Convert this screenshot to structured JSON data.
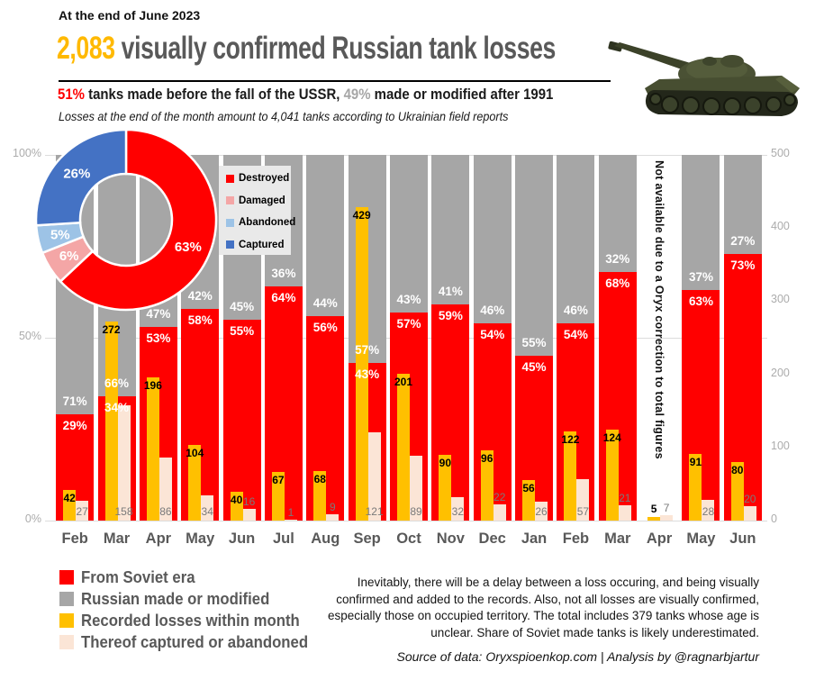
{
  "theme": {
    "accent_red": "#FF0000",
    "gray_bar": "#A6A6A6",
    "gold": "#FFC000",
    "pale_peach": "#FBE5D6",
    "damaged_pink": "#F4A6A6",
    "abandoned_blue": "#9DC3E6",
    "captured_blue": "#4472C4",
    "title_gray": "#595959",
    "title_number_gold": "#FFB900",
    "axis_gray": "#ACACAC"
  },
  "header": {
    "date_note": "At the end of June 2023",
    "title_number": "2,083",
    "title_rest": " visually confirmed Russian tank losses",
    "subtitle_pct_soviet": "51%",
    "subtitle_text_soviet": " tanks made before the fall of the USSR, ",
    "subtitle_pct_modern": "49%",
    "subtitle_text_modern": " made or modified after 1991",
    "note": "Losses at the end of the month amount to 4,041 tanks according to Ukrainian field reports"
  },
  "chart_data": [
    {
      "type": "pie",
      "subtype": "donut",
      "legend_position": "overlay-right",
      "slices": [
        {
          "label": "Destroyed",
          "value": 63,
          "display": "63%",
          "color": "#FF0000"
        },
        {
          "label": "Damaged",
          "value": 6,
          "display": "6%",
          "color": "#F4A6A6"
        },
        {
          "label": "Abandoned",
          "value": 5,
          "display": "5%",
          "color": "#9DC3E6"
        },
        {
          "label": "Captured",
          "value": 26,
          "display": "26%",
          "color": "#4472C4"
        }
      ]
    },
    {
      "type": "bar",
      "subtype": "100pct-stacked-with-count-overlay",
      "categories": [
        "Feb",
        "Mar",
        "Apr",
        "May",
        "Jun",
        "Jul",
        "Aug",
        "Sep",
        "Oct",
        "Nov",
        "Dec",
        "Jan",
        "Feb",
        "Mar",
        "Apr",
        "May",
        "Jun"
      ],
      "left_axis": {
        "ticks": [
          "0%",
          "50%",
          "100%"
        ],
        "range": [
          0,
          100
        ]
      },
      "right_axis": {
        "ticks": [
          "0",
          "100",
          "200",
          "300",
          "400",
          "500"
        ],
        "range": [
          0,
          500
        ]
      },
      "series": [
        {
          "name": "From Soviet era",
          "color": "#FF0000",
          "axis": "left",
          "unit": "%",
          "values": [
            29,
            34,
            53,
            58,
            55,
            64,
            56,
            43,
            57,
            59,
            54,
            45,
            54,
            68,
            null,
            63,
            73
          ]
        },
        {
          "name": "Russian made or modified",
          "color": "#A6A6A6",
          "axis": "left",
          "unit": "%",
          "values": [
            71,
            66,
            47,
            42,
            45,
            36,
            44,
            57,
            43,
            41,
            46,
            55,
            46,
            32,
            null,
            37,
            27
          ]
        },
        {
          "name": "Recorded losses within month",
          "color": "#FFC000",
          "axis": "right",
          "values": [
            42,
            272,
            196,
            104,
            40,
            67,
            68,
            429,
            201,
            90,
            96,
            56,
            122,
            124,
            5,
            91,
            80
          ]
        },
        {
          "name": "Thereof captured or abandoned",
          "color": "#FBE5D6",
          "axis": "right",
          "values": [
            27,
            158,
            86,
            34,
            16,
            1,
            9,
            121,
            89,
            32,
            22,
            26,
            57,
            21,
            7,
            28,
            20
          ]
        }
      ],
      "na_index": 14,
      "na_note": "Not available due to a Oryx correction to total figures",
      "gridlines": "horizontal at 0%, 50%, 100%"
    }
  ],
  "footer": {
    "legend": [
      {
        "label": "From Soviet era",
        "color": "#FF0000"
      },
      {
        "label": "Russian made or modified",
        "color": "#A6A6A6"
      },
      {
        "label": "Recorded losses within month",
        "color": "#FFC000"
      },
      {
        "label": "Thereof captured or abandoned",
        "color": "#FBE5D6"
      }
    ],
    "disclaimer": "Inevitably, there will be a delay between a loss occuring, and being visually confirmed and added to the records. Also, not all losses are visually confirmed, especially those on occupied territory. The total includes 379 tanks whose age is unclear. Share of Soviet made tanks is likely underestimated.",
    "source": "Source of data: Oryxspioenkop.com | Analysis by @ragnarbjartur"
  }
}
